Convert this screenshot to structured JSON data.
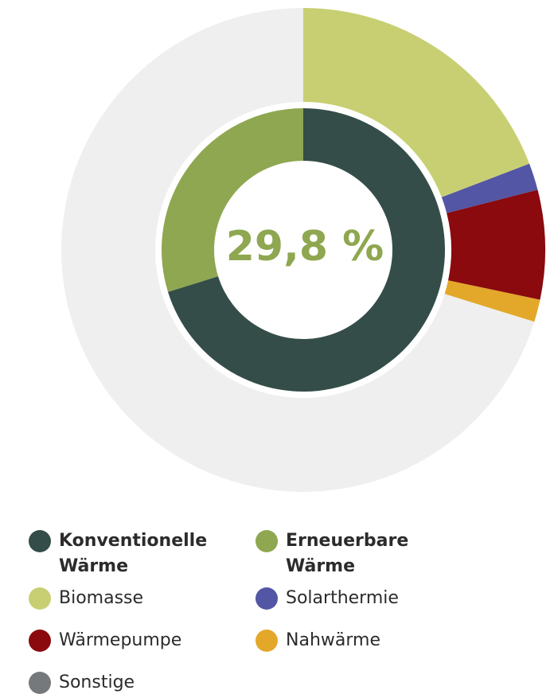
{
  "chart_data": {
    "type": "nested_donut",
    "center_label": "29,8 %",
    "inner": {
      "categories": [
        "Konventionelle Wärme",
        "Erneuerbare Wärme"
      ],
      "values": [
        70.2,
        29.8
      ],
      "colors": [
        "#344d48",
        "#8fa750"
      ]
    },
    "outer": {
      "categories": [
        "Biomasse",
        "Solarthermie",
        "Wärmepumpe",
        "Nahwärme",
        "Sonstige"
      ],
      "values": [
        19.2,
        1.8,
        7.3,
        1.5,
        70.2
      ],
      "colors": [
        "#c8cf72",
        "#5356a4",
        "#8a0a0e",
        "#e3a82a",
        "#76797c"
      ],
      "ring_colors": [
        "#c8cf72",
        "#5356a4",
        "#8a0a0e",
        "#e3a82a",
        "#eeefee"
      ]
    }
  }
}
